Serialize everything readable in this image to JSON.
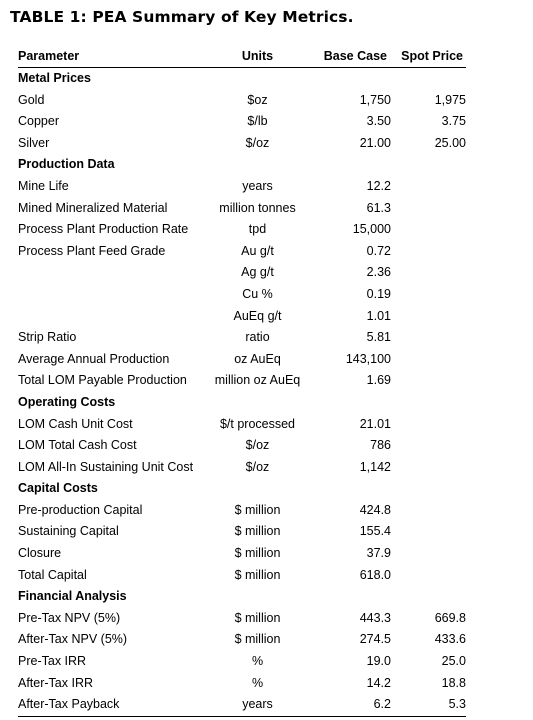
{
  "title": "TABLE 1: PEA Summary of Key Metrics.",
  "columns": [
    "Parameter",
    "Units",
    "Base Case",
    "Spot Price"
  ],
  "rows": [
    {
      "type": "section",
      "label": "Metal Prices"
    },
    {
      "type": "data",
      "label": "Gold",
      "units": "$oz",
      "base": "1,750",
      "spot": "1,975"
    },
    {
      "type": "data",
      "label": "Copper",
      "units": "$/lb",
      "base": "3.50",
      "spot": "3.75"
    },
    {
      "type": "data",
      "label": "Silver",
      "units": "$/oz",
      "base": "21.00",
      "spot": "25.00"
    },
    {
      "type": "section",
      "label": "Production Data"
    },
    {
      "type": "data",
      "label": "Mine Life",
      "units": "years",
      "base": "12.2",
      "spot": ""
    },
    {
      "type": "data",
      "label": "Mined Mineralized Material",
      "units": "million tonnes",
      "base": "61.3",
      "spot": ""
    },
    {
      "type": "data",
      "label": "Process Plant Production Rate",
      "units": "tpd",
      "base": "15,000",
      "spot": ""
    },
    {
      "type": "data",
      "label": "Process Plant Feed Grade",
      "units": "Au g/t",
      "base": "0.72",
      "spot": ""
    },
    {
      "type": "data",
      "label": "",
      "units": "Ag g/t",
      "base": "2.36",
      "spot": ""
    },
    {
      "type": "data",
      "label": "",
      "units": "Cu %",
      "base": "0.19",
      "spot": ""
    },
    {
      "type": "data",
      "label": "",
      "units": "AuEq g/t",
      "base": "1.01",
      "spot": ""
    },
    {
      "type": "data",
      "label": "Strip Ratio",
      "units": "ratio",
      "base": "5.81",
      "spot": ""
    },
    {
      "type": "data",
      "label": "Average Annual Production",
      "units": "oz AuEq",
      "base": "143,100",
      "spot": ""
    },
    {
      "type": "data",
      "label": "Total LOM Payable Production",
      "units": "million oz AuEq",
      "base": "1.69",
      "spot": ""
    },
    {
      "type": "section",
      "label": "Operating Costs"
    },
    {
      "type": "data",
      "label": "LOM Cash Unit Cost",
      "units": "$/t processed",
      "base": "21.01",
      "spot": ""
    },
    {
      "type": "data",
      "label": "LOM Total Cash Cost",
      "units": "$/oz",
      "base": "786",
      "spot": ""
    },
    {
      "type": "data",
      "label": "LOM All-In Sustaining Unit Cost",
      "units": "$/oz",
      "base": "1,142",
      "spot": ""
    },
    {
      "type": "section",
      "label": "Capital Costs"
    },
    {
      "type": "data",
      "label": "Pre-production Capital",
      "units": "$ million",
      "base": "424.8",
      "spot": ""
    },
    {
      "type": "data",
      "label": "Sustaining Capital",
      "units": "$ million",
      "base": "155.4",
      "spot": ""
    },
    {
      "type": "data",
      "label": "Closure",
      "units": "$ million",
      "base": "37.9",
      "spot": ""
    },
    {
      "type": "data",
      "label": "Total Capital",
      "units": "$ million",
      "base": "618.0",
      "spot": ""
    },
    {
      "type": "section",
      "label": "Financial Analysis"
    },
    {
      "type": "data",
      "label": "Pre-Tax NPV (5%)",
      "units": "$ million",
      "base": "443.3",
      "spot": "669.8"
    },
    {
      "type": "data",
      "label": "After-Tax NPV (5%)",
      "units": "$ million",
      "base": "274.5",
      "spot": "433.6"
    },
    {
      "type": "data",
      "label": "Pre-Tax IRR",
      "units": "%",
      "base": "19.0",
      "spot": "25.0"
    },
    {
      "type": "data",
      "label": "After-Tax IRR",
      "units": "%",
      "base": "14.2",
      "spot": "18.8"
    },
    {
      "type": "data",
      "label": "After-Tax Payback",
      "units": "years",
      "base": "6.2",
      "spot": "5.3"
    }
  ]
}
